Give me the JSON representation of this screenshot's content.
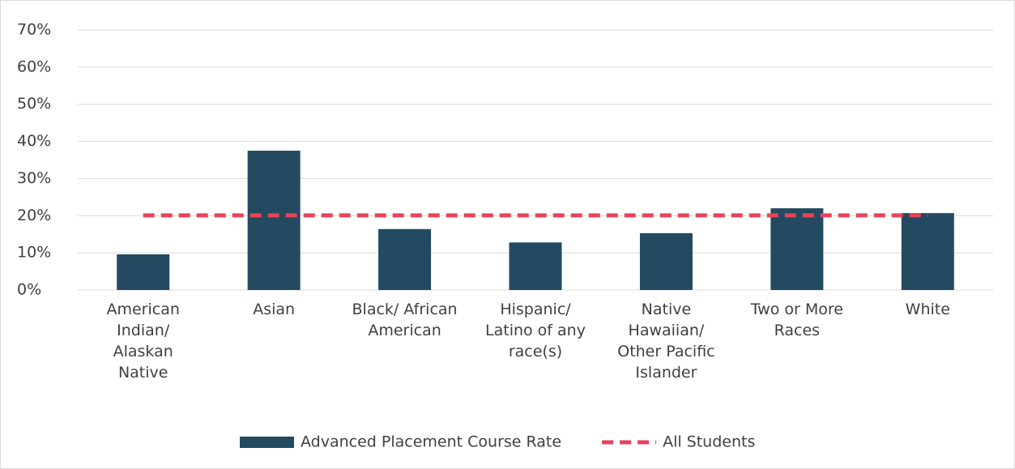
{
  "chart_data": {
    "type": "bar",
    "categories": [
      "American Indian/ Alaskan Native",
      "Asian",
      "Black/ African American",
      "Hispanic/ Latino of any race(s)",
      "Native Hawaiian/ Other Pacific Islander",
      "Two or More Races",
      "White"
    ],
    "series": [
      {
        "name": "Advanced Placement Course Rate",
        "color": "#234a60",
        "type": "bar",
        "values": [
          9.6,
          37.5,
          16.4,
          12.8,
          15.3,
          22.0,
          20.7
        ]
      },
      {
        "name": "All Students",
        "color": "#e8435a",
        "type": "line",
        "values": [
          20.1,
          20.1,
          20.1,
          20.1,
          20.1,
          20.1,
          20.1
        ]
      }
    ],
    "ylim": [
      0,
      70
    ],
    "yticks": [
      {
        "value": 0,
        "label": "0%"
      },
      {
        "value": 10,
        "label": "10%"
      },
      {
        "value": 20,
        "label": "20%"
      },
      {
        "value": 30,
        "label": "30%"
      },
      {
        "value": 40,
        "label": "40%"
      },
      {
        "value": 50,
        "label": "50%"
      },
      {
        "value": 60,
        "label": "60%"
      },
      {
        "value": 70,
        "label": "70%"
      }
    ],
    "grid": true,
    "legend": "bottom"
  }
}
